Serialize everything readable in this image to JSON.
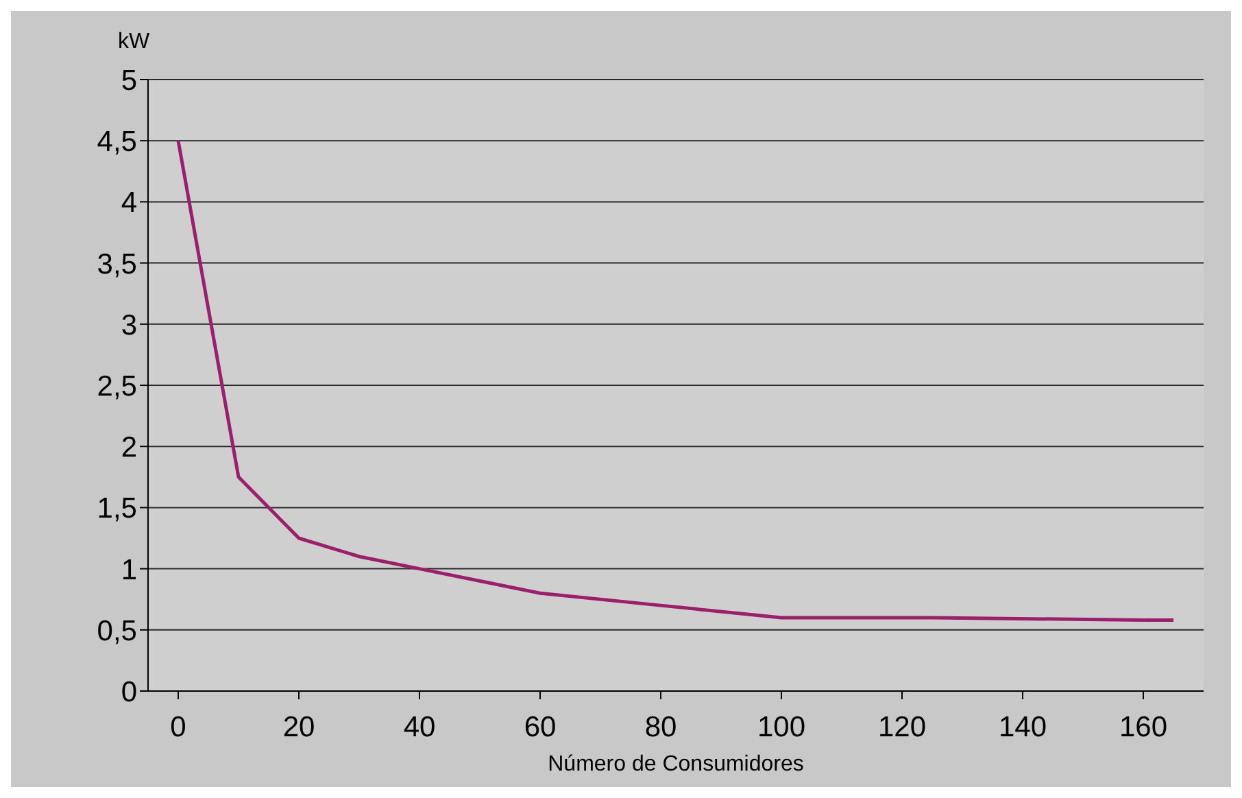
{
  "chart_data": {
    "type": "line",
    "ylabel": "kW",
    "xlabel": "Número de Consumidores",
    "x": [
      0,
      10,
      20,
      30,
      40,
      60,
      80,
      100,
      125,
      160,
      165
    ],
    "series": [
      {
        "color": "#9c1f6e",
        "values": [
          4.5,
          1.75,
          1.25,
          1.1,
          1.0,
          0.8,
          0.7,
          0.6,
          0.6,
          0.58,
          0.58
        ]
      }
    ],
    "xlim": [
      -5,
      170
    ],
    "xticks": [
      0,
      20,
      40,
      60,
      80,
      100,
      120,
      140,
      160
    ],
    "ylim": [
      0,
      5
    ],
    "yticks": [
      0,
      {
        "value": 0.5,
        "label": "0,5"
      },
      1,
      {
        "value": 1.5,
        "label": "1,5"
      },
      2,
      {
        "value": 2.5,
        "label": "2,5"
      },
      3,
      {
        "value": 3.5,
        "label": "3,5"
      },
      4,
      {
        "value": 4.5,
        "label": "4,5"
      },
      5
    ],
    "grid": "y",
    "marker": "none",
    "line_style": "solid"
  }
}
